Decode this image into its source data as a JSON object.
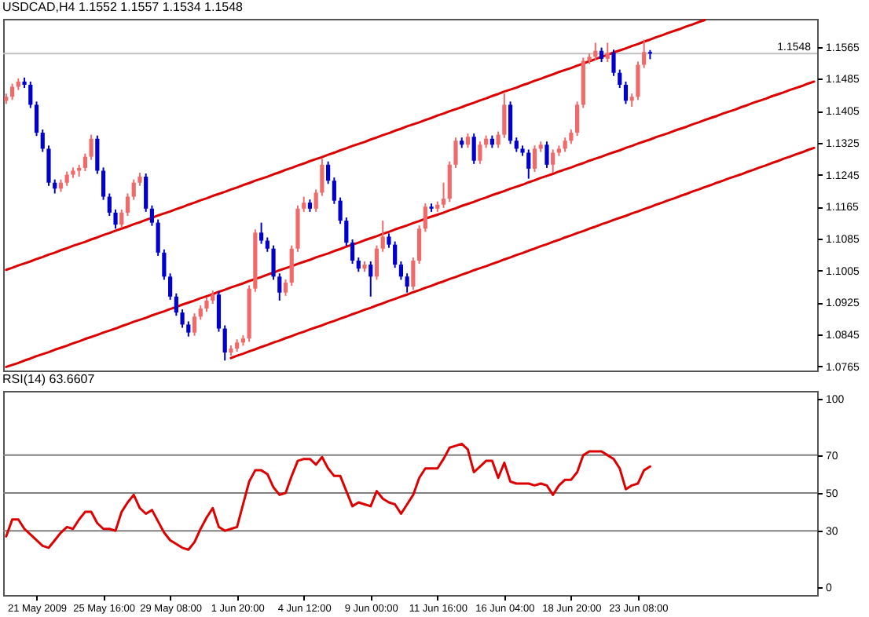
{
  "chart_data": [
    {
      "type": "candlestick",
      "title": "USDCAD,H4  1.1552 1.1557 1.1534 1.1548",
      "categories": [
        null,
        null,
        null,
        null,
        null,
        null,
        null,
        null,
        null,
        null,
        null,
        null,
        null,
        null,
        null,
        null,
        null,
        null,
        null,
        null,
        null,
        null,
        null,
        null,
        null,
        null,
        null,
        null,
        null,
        null,
        null,
        null,
        null,
        null,
        null,
        null,
        null,
        null,
        null,
        null,
        null,
        null,
        null,
        null,
        null,
        null,
        null,
        null,
        null,
        null,
        null,
        null,
        null,
        null,
        null,
        null,
        null,
        null,
        null,
        null,
        null,
        null,
        null,
        null,
        null,
        null,
        null,
        null,
        null,
        null,
        null,
        null,
        null,
        null,
        null,
        null,
        null,
        null,
        null,
        null,
        null,
        null,
        null,
        null,
        null,
        null,
        null,
        null,
        null,
        null,
        null,
        null,
        null,
        null,
        null,
        null,
        null,
        null,
        null,
        null,
        null,
        null,
        null,
        null,
        null,
        null,
        null,
        null,
        null,
        null,
        null,
        null,
        null,
        null,
        null,
        null,
        null,
        null,
        null,
        null,
        null,
        null,
        null,
        null,
        null,
        null,
        null,
        null,
        null,
        null,
        null,
        null,
        null,
        null
      ],
      "ohlc": [
        [
          1.143,
          1.1448,
          1.1422,
          1.144
        ],
        [
          1.144,
          1.1473,
          1.1432,
          1.1465
        ],
        [
          1.1465,
          1.1486,
          1.1457,
          1.1478
        ],
        [
          1.1478,
          1.1488,
          1.1462,
          1.147
        ],
        [
          1.147,
          1.1478,
          1.1412,
          1.142
        ],
        [
          1.142,
          1.1428,
          1.1342,
          1.135
        ],
        [
          1.135,
          1.1358,
          1.1302,
          1.131
        ],
        [
          1.131,
          1.1318,
          1.1217,
          1.1225
        ],
        [
          1.1225,
          1.1233,
          1.1198,
          1.121
        ],
        [
          1.121,
          1.1233,
          1.1202,
          1.1225
        ],
        [
          1.1225,
          1.1253,
          1.1217,
          1.1245
        ],
        [
          1.1245,
          1.1263,
          1.1237,
          1.1255
        ],
        [
          1.1255,
          1.127,
          1.124,
          1.1262
        ],
        [
          1.1262,
          1.1298,
          1.1254,
          1.129
        ],
        [
          1.129,
          1.1345,
          1.1282,
          1.1335
        ],
        [
          1.1335,
          1.1343,
          1.1247,
          1.1255
        ],
        [
          1.1255,
          1.1263,
          1.1182,
          1.119
        ],
        [
          1.119,
          1.1198,
          1.1142,
          1.115
        ],
        [
          1.115,
          1.1158,
          1.111,
          1.112
        ],
        [
          1.112,
          1.1158,
          1.1112,
          1.115
        ],
        [
          1.115,
          1.1198,
          1.1142,
          1.119
        ],
        [
          1.119,
          1.1233,
          1.1182,
          1.1225
        ],
        [
          1.1225,
          1.125,
          1.1217,
          1.124
        ],
        [
          1.124,
          1.1248,
          1.1152,
          1.116
        ],
        [
          1.116,
          1.1168,
          1.1117,
          1.1125
        ],
        [
          1.1125,
          1.1133,
          1.1042,
          1.105
        ],
        [
          1.105,
          1.1058,
          1.0982,
          1.099
        ],
        [
          1.099,
          1.0998,
          1.0932,
          1.094
        ],
        [
          1.094,
          1.0948,
          1.0892,
          1.09
        ],
        [
          1.09,
          1.0908,
          1.0862,
          1.087
        ],
        [
          1.087,
          1.0878,
          1.084,
          1.085
        ],
        [
          1.085,
          1.0898,
          1.0842,
          1.089
        ],
        [
          1.089,
          1.0918,
          1.0882,
          1.091
        ],
        [
          1.091,
          1.0938,
          1.0902,
          1.093
        ],
        [
          1.093,
          1.0955,
          1.0922,
          1.0945
        ],
        [
          1.0945,
          1.0953,
          1.0852,
          1.086
        ],
        [
          1.086,
          1.0868,
          1.078,
          1.08
        ],
        [
          1.08,
          1.0818,
          1.0792,
          1.081
        ],
        [
          1.081,
          1.0833,
          1.0802,
          1.0825
        ],
        [
          1.0825,
          1.0843,
          1.0817,
          1.0835
        ],
        [
          1.0835,
          1.0968,
          1.0827,
          1.096
        ],
        [
          1.096,
          1.1108,
          1.0952,
          1.11
        ],
        [
          1.11,
          1.1125,
          1.1072,
          1.108
        ],
        [
          1.108,
          1.1088,
          1.1052,
          1.106
        ],
        [
          1.106,
          1.1068,
          1.0982,
          1.099
        ],
        [
          1.099,
          1.0998,
          1.093,
          1.095
        ],
        [
          1.095,
          1.0983,
          1.0942,
          1.0975
        ],
        [
          1.0975,
          1.1068,
          1.0967,
          1.106
        ],
        [
          1.106,
          1.1168,
          1.1052,
          1.116
        ],
        [
          1.116,
          1.119,
          1.1152,
          1.1175
        ],
        [
          1.1175,
          1.1183,
          1.1152,
          1.116
        ],
        [
          1.116,
          1.1208,
          1.1152,
          1.12
        ],
        [
          1.12,
          1.1285,
          1.1192,
          1.127
        ],
        [
          1.127,
          1.1278,
          1.1222,
          1.123
        ],
        [
          1.123,
          1.1238,
          1.1172,
          1.118
        ],
        [
          1.118,
          1.1188,
          1.1122,
          1.113
        ],
        [
          1.113,
          1.1138,
          1.1067,
          1.1075
        ],
        [
          1.1075,
          1.1083,
          1.1022,
          1.103
        ],
        [
          1.103,
          1.1038,
          1.1002,
          1.101
        ],
        [
          1.101,
          1.1028,
          1.1002,
          1.102
        ],
        [
          1.102,
          1.1028,
          1.094,
          1.099
        ],
        [
          1.099,
          1.1068,
          1.0982,
          1.106
        ],
        [
          1.106,
          1.113,
          1.1052,
          1.109
        ],
        [
          1.109,
          1.1098,
          1.1062,
          1.107
        ],
        [
          1.107,
          1.1078,
          1.1012,
          1.102
        ],
        [
          1.102,
          1.1028,
          1.0982,
          1.099
        ],
        [
          1.099,
          1.0998,
          1.095,
          1.0965
        ],
        [
          1.0965,
          1.1038,
          1.0957,
          1.103
        ],
        [
          1.103,
          1.1118,
          1.1022,
          1.111
        ],
        [
          1.111,
          1.1173,
          1.1102,
          1.1165
        ],
        [
          1.1165,
          1.1173,
          1.1152,
          1.116
        ],
        [
          1.116,
          1.1178,
          1.1152,
          1.117
        ],
        [
          1.117,
          1.1225,
          1.1162,
          1.1185
        ],
        [
          1.1185,
          1.1278,
          1.1177,
          1.127
        ],
        [
          1.127,
          1.1338,
          1.1262,
          1.133
        ],
        [
          1.133,
          1.1338,
          1.1312,
          1.132
        ],
        [
          1.132,
          1.1348,
          1.1312,
          1.134
        ],
        [
          1.134,
          1.1348,
          1.1272,
          1.128
        ],
        [
          1.128,
          1.1328,
          1.1272,
          1.132
        ],
        [
          1.132,
          1.1343,
          1.1312,
          1.1335
        ],
        [
          1.1335,
          1.1343,
          1.1312,
          1.132
        ],
        [
          1.132,
          1.1353,
          1.1312,
          1.1345
        ],
        [
          1.1345,
          1.1448,
          1.1337,
          1.142
        ],
        [
          1.142,
          1.1428,
          1.1322,
          1.133
        ],
        [
          1.133,
          1.1338,
          1.1302,
          1.131
        ],
        [
          1.131,
          1.1318,
          1.1292,
          1.13
        ],
        [
          1.13,
          1.1308,
          1.1235,
          1.126
        ],
        [
          1.126,
          1.1318,
          1.1252,
          1.131
        ],
        [
          1.131,
          1.1328,
          1.1302,
          1.132
        ],
        [
          1.132,
          1.1328,
          1.1262,
          1.127
        ],
        [
          1.127,
          1.1308,
          1.125,
          1.13
        ],
        [
          1.13,
          1.1318,
          1.1292,
          1.131
        ],
        [
          1.131,
          1.1338,
          1.1302,
          1.133
        ],
        [
          1.133,
          1.1358,
          1.1322,
          1.135
        ],
        [
          1.135,
          1.1428,
          1.1342,
          1.142
        ],
        [
          1.142,
          1.1538,
          1.1412,
          1.153
        ],
        [
          1.153,
          1.1548,
          1.1522,
          1.154
        ],
        [
          1.154,
          1.1575,
          1.1532,
          1.1555
        ],
        [
          1.1555,
          1.1563,
          1.1527,
          1.1535
        ],
        [
          1.1535,
          1.1575,
          1.1527,
          1.155
        ],
        [
          1.155,
          1.1558,
          1.1492,
          1.15
        ],
        [
          1.15,
          1.1508,
          1.1462,
          1.147
        ],
        [
          1.147,
          1.1478,
          1.1422,
          1.143
        ],
        [
          1.143,
          1.1448,
          1.1415,
          1.144
        ],
        [
          1.144,
          1.1528,
          1.1432,
          1.152
        ],
        [
          1.152,
          1.1583,
          1.1512,
          1.1552
        ],
        [
          1.1552,
          1.1557,
          1.1534,
          1.1548
        ],
        null,
        null,
        null,
        null,
        null,
        null,
        null,
        null,
        null,
        null,
        null,
        null,
        null,
        null,
        null,
        null,
        null,
        null,
        null,
        null,
        null,
        null,
        null,
        null,
        null,
        null,
        null
      ],
      "colors": [
        "#f06a6a",
        "#f06a6a",
        "#f06a6a",
        "#0000cc",
        "#0000cc",
        "#0000cc",
        "#0000cc",
        "#0000cc",
        "#0000cc",
        "#f06a6a",
        "#f06a6a",
        "#f06a6a",
        "#f06a6a",
        "#f06a6a",
        "#f06a6a",
        "#0000cc",
        "#0000cc",
        "#0000cc",
        "#0000cc",
        "#f06a6a",
        "#f06a6a",
        "#f06a6a",
        "#f06a6a",
        "#0000cc",
        "#0000cc",
        "#0000cc",
        "#0000cc",
        "#0000cc",
        "#0000cc",
        "#0000cc",
        "#0000cc",
        "#f06a6a",
        "#f06a6a",
        "#f06a6a",
        "#f06a6a",
        "#0000cc",
        "#0000cc",
        "#f06a6a",
        "#f06a6a",
        "#f06a6a",
        "#f06a6a",
        "#f06a6a",
        "#0000cc",
        "#0000cc",
        "#0000cc",
        "#0000cc",
        "#f06a6a",
        "#f06a6a",
        "#f06a6a",
        "#f06a6a",
        "#0000cc",
        "#f06a6a",
        "#f06a6a",
        "#0000cc",
        "#0000cc",
        "#0000cc",
        "#0000cc",
        "#0000cc",
        "#0000cc",
        "#f06a6a",
        "#0000cc",
        "#f06a6a",
        "#f06a6a",
        "#0000cc",
        "#0000cc",
        "#0000cc",
        "#0000cc",
        "#f06a6a",
        "#f06a6a",
        "#f06a6a",
        "#0000cc",
        "#f06a6a",
        "#f06a6a",
        "#f06a6a",
        "#f06a6a",
        "#0000cc",
        "#f06a6a",
        "#0000cc",
        "#f06a6a",
        "#f06a6a",
        "#0000cc",
        "#f06a6a",
        "#f06a6a",
        "#0000cc",
        "#0000cc",
        "#0000cc",
        "#0000cc",
        "#f06a6a",
        "#f06a6a",
        "#0000cc",
        "#f06a6a",
        "#f06a6a",
        "#f06a6a",
        "#f06a6a",
        "#f06a6a",
        "#f06a6a",
        "#f06a6a",
        "#f06a6a",
        "#0000cc",
        "#f06a6a",
        "#0000cc",
        "#0000cc",
        "#0000cc",
        "#f06a6a",
        "#f06a6a",
        "#f06a6a",
        "#0000cc",
        null,
        null,
        null,
        null,
        null,
        null,
        null,
        null,
        null,
        null,
        null,
        null,
        null,
        null,
        null,
        null,
        null,
        null,
        null,
        null,
        null,
        null,
        null,
        null,
        null,
        null,
        null
      ],
      "series": [
        {
          "type": "line",
          "color": "#dd0000",
          "values": [
            1.1007,
            1.1012,
            1.1018,
            1.1023,
            1.1028,
            1.1034,
            1.1039,
            1.1045,
            1.105,
            1.1056,
            1.1061,
            1.1067,
            1.1072,
            1.1077,
            1.1083,
            1.1088,
            1.1094,
            1.1099,
            1.1105,
            1.111,
            1.1115,
            1.1121,
            1.1126,
            1.1132,
            1.1137,
            1.1143,
            1.1148,
            1.1153,
            1.1159,
            1.1164,
            1.117,
            1.1175,
            1.1181,
            1.1186,
            1.1192,
            1.1197,
            1.1202,
            1.1208,
            1.1213,
            1.1219,
            1.1224,
            1.123,
            1.1235,
            1.124,
            1.1246,
            1.1251,
            1.1257,
            1.1262,
            1.1268,
            1.1273,
            1.1279,
            1.1284,
            1.1289,
            1.1295,
            1.13,
            1.1306,
            1.1311,
            1.1317,
            1.1322,
            1.1327,
            1.1333,
            1.1338,
            1.1344,
            1.1349,
            1.1355,
            1.136,
            1.1366,
            1.1371,
            1.1376,
            1.1382,
            1.1387,
            1.1393,
            1.1398,
            1.1404,
            1.1409,
            1.1414,
            1.142,
            1.1425,
            1.1431,
            1.1436,
            1.1442,
            1.1447,
            1.1453,
            1.1458,
            1.1463,
            1.1469,
            1.1474,
            1.148,
            1.1485,
            1.1491,
            1.1496,
            1.1502,
            1.1507,
            1.1512,
            1.1518,
            1.1523,
            1.1529,
            1.1534,
            1.154,
            1.1545,
            1.1551,
            1.1556,
            1.1561,
            1.1567,
            1.1572,
            1.1578,
            1.1583,
            1.1589,
            1.1594,
            1.16,
            1.1605,
            1.161,
            1.1616,
            1.1621,
            1.1627,
            1.1632,
            null,
            null,
            null,
            null,
            null,
            null,
            null,
            null,
            null,
            null,
            null,
            null,
            null,
            null,
            null,
            null,
            null,
            null
          ]
        },
        {
          "type": "line",
          "color": "#dd0000",
          "values": [
            1.0764,
            1.0769,
            1.0774,
            1.078,
            1.0785,
            1.0791,
            1.0796,
            1.0801,
            1.0807,
            1.0812,
            1.0817,
            1.0823,
            1.0828,
            1.0834,
            1.0839,
            1.0844,
            1.085,
            1.0855,
            1.086,
            1.0866,
            1.0871,
            1.0877,
            1.0882,
            1.0887,
            1.0893,
            1.0898,
            1.0903,
            1.0909,
            1.0914,
            1.092,
            1.0925,
            1.093,
            1.0936,
            1.0941,
            1.0946,
            1.0952,
            1.0957,
            1.0963,
            1.0968,
            1.0973,
            1.0979,
            1.0984,
            1.0989,
            1.0995,
            1.1,
            1.1006,
            1.1011,
            1.1016,
            1.1022,
            1.1027,
            1.1032,
            1.1038,
            1.1043,
            1.1048,
            1.1054,
            1.1059,
            1.1065,
            1.107,
            1.1075,
            1.1081,
            1.1086,
            1.1091,
            1.1097,
            1.1102,
            1.1108,
            1.1113,
            1.1118,
            1.1124,
            1.1129,
            1.1135,
            1.114,
            1.1145,
            1.115,
            1.1156,
            1.1161,
            1.1167,
            1.1172,
            1.1177,
            1.1183,
            1.1188,
            1.1194,
            1.1199,
            1.1204,
            1.121,
            1.1215,
            1.122,
            1.1226,
            1.1231,
            1.1237,
            1.1242,
            1.1247,
            1.1253,
            1.1258,
            1.1263,
            1.1269,
            1.1274,
            1.128,
            1.1285,
            1.129,
            1.1296,
            1.1301,
            1.1306,
            1.1312,
            1.1317,
            1.1323,
            1.1328,
            1.1333,
            1.1339,
            1.1344,
            1.1349,
            1.1355,
            1.136,
            1.1365,
            1.1371,
            1.1376,
            1.1382,
            1.1387,
            1.1392,
            1.1398,
            1.1403,
            1.1408,
            1.1414,
            1.1419,
            1.1425,
            1.143,
            1.1435,
            1.1441,
            1.1446,
            1.1451,
            1.1457,
            1.1462,
            1.1467,
            1.1473,
            1.1478
          ]
        },
        {
          "type": "line",
          "color": "#dd0000",
          "values": [
            null,
            null,
            null,
            null,
            null,
            null,
            null,
            null,
            null,
            null,
            null,
            null,
            null,
            null,
            null,
            null,
            null,
            null,
            null,
            null,
            null,
            null,
            null,
            null,
            null,
            null,
            null,
            null,
            null,
            null,
            null,
            null,
            null,
            null,
            null,
            null,
            null,
            1.0786,
            1.0792,
            1.0797,
            1.0803,
            1.0808,
            1.0814,
            1.0819,
            1.0825,
            1.083,
            1.0836,
            1.0841,
            1.0847,
            1.0852,
            1.0858,
            1.0863,
            1.0868,
            1.0874,
            1.0879,
            1.0885,
            1.089,
            1.0896,
            1.0901,
            1.0907,
            1.0912,
            1.0918,
            1.0923,
            1.0929,
            1.0934,
            1.094,
            1.0945,
            1.0951,
            1.0956,
            1.0962,
            1.0967,
            1.0973,
            1.0978,
            1.0984,
            1.0989,
            1.0995,
            1.1,
            1.1006,
            1.1011,
            1.1016,
            1.1022,
            1.1027,
            1.1033,
            1.1038,
            1.1044,
            1.1049,
            1.1055,
            1.106,
            1.1066,
            1.1071,
            1.1077,
            1.1082,
            1.1088,
            1.1093,
            1.1099,
            1.1104,
            1.111,
            1.1115,
            1.1121,
            1.1126,
            1.1132,
            1.1137,
            1.1142,
            1.1148,
            1.1153,
            1.1159,
            1.1164,
            1.117,
            1.1175,
            1.1181,
            1.1186,
            1.1192,
            1.1197,
            1.1203,
            1.1208,
            1.1214,
            1.1219,
            1.1225,
            1.123,
            1.1236,
            1.1241,
            1.1246,
            1.1252,
            1.1257,
            1.1263,
            1.1268,
            1.1274,
            1.1279,
            1.1285,
            1.129,
            1.1296,
            1.1301,
            1.1307,
            1.1312
          ]
        }
      ],
      "ylim": [
        1.0755,
        1.1635
      ],
      "yticks": [
        1.0765,
        1.0845,
        1.0925,
        1.1005,
        1.1085,
        1.1165,
        1.1245,
        1.1325,
        1.1405,
        1.1485,
        1.1565
      ],
      "ref_lines": [
        {
          "axis": "y",
          "value": 1.1548,
          "label": "1.1548",
          "color": "#c0c0c0"
        }
      ],
      "tick_labels": "y"
    },
    {
      "type": "line",
      "title": "RSI(14) 63.6607",
      "categories": [
        null,
        null,
        null,
        null,
        null,
        "21 May 2009",
        null,
        null,
        null,
        null,
        null,
        null,
        null,
        null,
        null,
        null,
        "25 May 16:00",
        null,
        null,
        null,
        null,
        null,
        null,
        null,
        null,
        null,
        null,
        "29 May 08:00",
        null,
        null,
        null,
        null,
        null,
        null,
        null,
        null,
        null,
        null,
        "1 Jun 20:00",
        null,
        null,
        null,
        null,
        null,
        null,
        null,
        null,
        null,
        null,
        "4 Jun 12:00",
        null,
        null,
        null,
        null,
        null,
        null,
        null,
        null,
        null,
        null,
        "9 Jun 00:00",
        null,
        null,
        null,
        null,
        null,
        null,
        null,
        null,
        null,
        null,
        "11 Jun 16:00",
        null,
        null,
        null,
        null,
        null,
        null,
        null,
        null,
        null,
        null,
        "16 Jun 04:00",
        null,
        null,
        null,
        null,
        null,
        null,
        null,
        null,
        null,
        null,
        "18 Jun 20:00",
        null,
        null,
        null,
        null,
        null,
        null,
        null,
        null,
        null,
        null,
        "23 Jun 08:00",
        null,
        null,
        null,
        null,
        null,
        null,
        null,
        null,
        null,
        null,
        null,
        null,
        null,
        null,
        null,
        null,
        null,
        null,
        null,
        null,
        null,
        null,
        null,
        null,
        null,
        null,
        null,
        null,
        null
      ],
      "series": [
        {
          "color": "#dd0000",
          "values": [
            27,
            36,
            36,
            31,
            28,
            25,
            22,
            21,
            25,
            29,
            32,
            31,
            36,
            40,
            40,
            34,
            31,
            31,
            30,
            40,
            45,
            49,
            42,
            39,
            41,
            35,
            29,
            25,
            23,
            21,
            20,
            24,
            31,
            37,
            42,
            32,
            30,
            31,
            32,
            44,
            56,
            62,
            62,
            60,
            53,
            49,
            50,
            59,
            67,
            68,
            68,
            65,
            69,
            63,
            59,
            59,
            51,
            43,
            45,
            44,
            43,
            51,
            47,
            45,
            44,
            39,
            44,
            49,
            58,
            63,
            63,
            63,
            68,
            74,
            75,
            76,
            73,
            61,
            64,
            67,
            67,
            58,
            66,
            56,
            55,
            55,
            55,
            54,
            55,
            54,
            49,
            54,
            57,
            57,
            61,
            70,
            72,
            72,
            72,
            70,
            68,
            63,
            52,
            54,
            55,
            62,
            64,
            null,
            null,
            null,
            null,
            null,
            null,
            null,
            null,
            null,
            null,
            null,
            null,
            null,
            null,
            null,
            null,
            null,
            null,
            null,
            null,
            null,
            null,
            null,
            null,
            null,
            null,
            null
          ]
        }
      ],
      "ylim": [
        -4,
        104
      ],
      "yticks": [
        0,
        30,
        50,
        70,
        100
      ],
      "ref_lines": [
        {
          "axis": "y",
          "value": 70,
          "color": "#808080"
        },
        {
          "axis": "y",
          "value": 50,
          "color": "#808080"
        },
        {
          "axis": "y",
          "value": 30,
          "color": "#808080"
        }
      ]
    }
  ]
}
